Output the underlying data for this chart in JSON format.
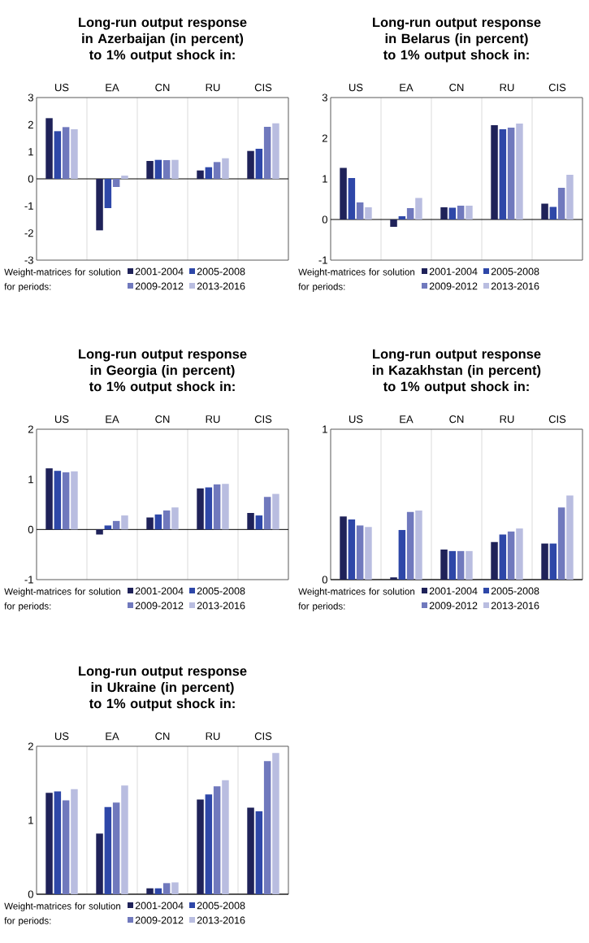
{
  "chart_data": [
    {
      "type": "bar",
      "title": "Long-run output response in Azerbaijan (in percent) to 1% output shock in:",
      "categories": [
        "US",
        "EA",
        "CN",
        "RU",
        "CIS"
      ],
      "ylim": [
        -3,
        3
      ],
      "yticks": [
        -3,
        -2,
        -1,
        0,
        1,
        2,
        3
      ],
      "grid": "x",
      "legend": "bottom",
      "legend_title": "Weight-matrices for solution for periods:",
      "series": [
        {
          "name": "2001-2004",
          "color": "#1f2259",
          "values": [
            2.24,
            -1.9,
            0.66,
            0.31,
            1.03
          ]
        },
        {
          "name": "2005-2008",
          "color": "#2e47a8",
          "values": [
            1.76,
            -1.08,
            0.7,
            0.43,
            1.11
          ]
        },
        {
          "name": "2009-2012",
          "color": "#7079bd",
          "values": [
            1.91,
            -0.3,
            0.69,
            0.62,
            1.92
          ]
        },
        {
          "name": "2013-2016",
          "color": "#b9bde0",
          "values": [
            1.83,
            0.12,
            0.7,
            0.76,
            2.05
          ]
        }
      ]
    },
    {
      "type": "bar",
      "title": "Long-run output response in Belarus (in percent) to 1% output shock in:",
      "categories": [
        "US",
        "EA",
        "CN",
        "RU",
        "CIS"
      ],
      "ylim": [
        -1,
        3
      ],
      "yticks": [
        -1,
        0,
        1,
        2,
        3
      ],
      "grid": "x",
      "legend": "bottom",
      "legend_title": "Weight-matrices for solution for periods:",
      "series": [
        {
          "name": "2001-2004",
          "color": "#1f2259",
          "values": [
            1.27,
            -0.18,
            0.3,
            2.32,
            0.39
          ]
        },
        {
          "name": "2005-2008",
          "color": "#2e47a8",
          "values": [
            1.02,
            0.08,
            0.29,
            2.22,
            0.31
          ]
        },
        {
          "name": "2009-2012",
          "color": "#7079bd",
          "values": [
            0.42,
            0.28,
            0.34,
            2.26,
            0.78
          ]
        },
        {
          "name": "2013-2016",
          "color": "#b9bde0",
          "values": [
            0.3,
            0.53,
            0.34,
            2.36,
            1.1
          ]
        }
      ]
    },
    {
      "type": "bar",
      "title": "Long-run output response in Georgia (in percent) to 1% output shock in:",
      "categories": [
        "US",
        "EA",
        "CN",
        "RU",
        "CIS"
      ],
      "ylim": [
        -1,
        2
      ],
      "yticks": [
        -1,
        0,
        1,
        2
      ],
      "grid": "x",
      "legend": "bottom",
      "legend_title": "Weight-matrices for solution for periods:",
      "series": [
        {
          "name": "2001-2004",
          "color": "#1f2259",
          "values": [
            1.22,
            -0.1,
            0.24,
            0.82,
            0.33
          ]
        },
        {
          "name": "2005-2008",
          "color": "#2e47a8",
          "values": [
            1.17,
            0.08,
            0.3,
            0.84,
            0.28
          ]
        },
        {
          "name": "2009-2012",
          "color": "#7079bd",
          "values": [
            1.14,
            0.17,
            0.38,
            0.9,
            0.65
          ]
        },
        {
          "name": "2013-2016",
          "color": "#b9bde0",
          "values": [
            1.16,
            0.28,
            0.44,
            0.91,
            0.71
          ]
        }
      ]
    },
    {
      "type": "bar",
      "title": "Long-run output response in Kazakhstan (in percent) to 1% output shock in:",
      "categories": [
        "US",
        "EA",
        "CN",
        "RU",
        "CIS"
      ],
      "ylim": [
        0,
        1
      ],
      "yticks": [
        0,
        1
      ],
      "grid": "x",
      "legend": "bottom",
      "legend_title": "Weight-matrices for solution for periods:",
      "series": [
        {
          "name": "2001-2004",
          "color": "#1f2259",
          "values": [
            0.42,
            0.015,
            0.2,
            0.25,
            0.24
          ]
        },
        {
          "name": "2005-2008",
          "color": "#2e47a8",
          "values": [
            0.4,
            0.33,
            0.19,
            0.3,
            0.24
          ]
        },
        {
          "name": "2009-2012",
          "color": "#7079bd",
          "values": [
            0.36,
            0.45,
            0.19,
            0.32,
            0.48
          ]
        },
        {
          "name": "2013-2016",
          "color": "#b9bde0",
          "values": [
            0.35,
            0.46,
            0.19,
            0.34,
            0.56
          ]
        }
      ]
    },
    {
      "type": "bar",
      "title": "Long-run output response in Ukraine (in percent) to 1% output shock in:",
      "categories": [
        "US",
        "EA",
        "CN",
        "RU",
        "CIS"
      ],
      "ylim": [
        0,
        2
      ],
      "yticks": [
        0,
        1,
        2
      ],
      "grid": "x",
      "legend": "bottom",
      "legend_title": "Weight-matrices for solution for periods:",
      "series": [
        {
          "name": "2001-2004",
          "color": "#1f2259",
          "values": [
            1.37,
            0.82,
            0.08,
            1.28,
            1.17
          ]
        },
        {
          "name": "2005-2008",
          "color": "#2e47a8",
          "values": [
            1.39,
            1.18,
            0.08,
            1.35,
            1.12
          ]
        },
        {
          "name": "2009-2012",
          "color": "#7079bd",
          "values": [
            1.27,
            1.24,
            0.15,
            1.46,
            1.8
          ]
        },
        {
          "name": "2013-2016",
          "color": "#b9bde0",
          "values": [
            1.42,
            1.47,
            0.16,
            1.54,
            1.91
          ]
        }
      ]
    }
  ]
}
